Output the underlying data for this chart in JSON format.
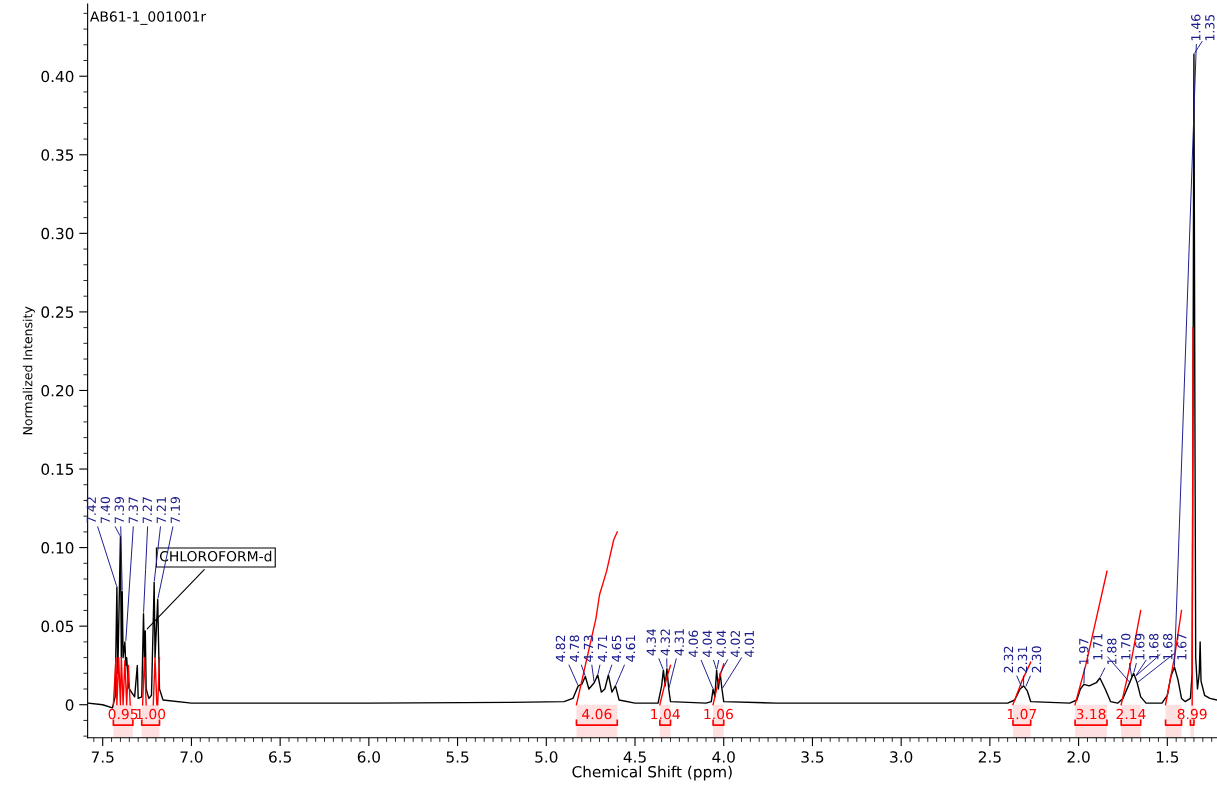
{
  "chart_data": {
    "type": "line",
    "title": "AB61-1_001001r",
    "xlabel": "Chemical Shift (ppm)",
    "ylabel": "Normalized Intensity",
    "xlim": [
      7.585,
      1.22
    ],
    "ylim": [
      -0.021,
      0.446
    ],
    "xticks": [
      7.5,
      {
        "value": 7,
        "label": "7.0"
      },
      6.5,
      {
        "value": 6,
        "label": "6.0"
      },
      5.5,
      {
        "value": 5,
        "label": "5.0"
      },
      4.5,
      {
        "value": 4,
        "label": "4.0"
      },
      3.5,
      {
        "value": 3,
        "label": "3.0"
      },
      2.5,
      {
        "value": 2,
        "label": "2.0"
      },
      1.5
    ],
    "yticks": [
      0,
      0.05,
      {
        "value": 0.1,
        "label": "0.10"
      },
      0.15,
      {
        "value": 0.2,
        "label": "0.20"
      },
      0.25,
      {
        "value": 0.3,
        "label": "0.30"
      },
      0.35,
      {
        "value": 0.4,
        "label": "0.40"
      }
    ],
    "grid": false,
    "marker": "none",
    "line_style": "solid",
    "series": [
      {
        "color": "#000000",
        "x": [
          7.58,
          7.5,
          7.445,
          7.43,
          7.42,
          7.415,
          7.4,
          7.395,
          7.39,
          7.385,
          7.375,
          7.37,
          7.365,
          7.355,
          7.35,
          7.32,
          7.305,
          7.3,
          7.28,
          7.27,
          7.265,
          7.26,
          7.255,
          7.24,
          7.225,
          7.21,
          7.205,
          7.19,
          7.18,
          7.16,
          7.0,
          6.0,
          5.2,
          4.9,
          4.85,
          4.82,
          4.8,
          4.78,
          4.76,
          4.73,
          4.71,
          4.69,
          4.67,
          4.65,
          4.63,
          4.61,
          4.59,
          4.5,
          4.37,
          4.35,
          4.34,
          4.33,
          4.32,
          4.31,
          4.3,
          4.1,
          4.07,
          4.06,
          4.05,
          4.04,
          4.03,
          4.02,
          4.01,
          4.0,
          3.7,
          2.4,
          2.36,
          2.33,
          2.31,
          2.29,
          2.27,
          2.05,
          2.01,
          1.99,
          1.97,
          1.94,
          1.9,
          1.88,
          1.85,
          1.82,
          1.78,
          1.75,
          1.72,
          1.69,
          1.67,
          1.65,
          1.62,
          1.53,
          1.5,
          1.48,
          1.46,
          1.44,
          1.42,
          1.4,
          1.37,
          1.36,
          1.355,
          1.35,
          1.345,
          1.34,
          1.33,
          1.32,
          1.315,
          1.31,
          1.29,
          1.26,
          1.22
        ],
        "values": [
          0.001,
          0.0,
          -0.002,
          0.005,
          0.075,
          0.02,
          0.107,
          0.03,
          0.072,
          0.03,
          0.04,
          0.025,
          0.03,
          0.012,
          0.01,
          0.005,
          0.025,
          0.004,
          0.005,
          0.058,
          0.03,
          0.047,
          0.01,
          0.004,
          0.006,
          0.078,
          0.03,
          0.067,
          0.01,
          0.003,
          0.001,
          0.001,
          0.0015,
          0.002,
          0.004,
          0.012,
          0.013,
          0.018,
          0.01,
          0.014,
          0.019,
          0.008,
          0.01,
          0.019,
          0.008,
          0.012,
          0.003,
          0.001,
          0.001,
          0.012,
          0.022,
          0.012,
          0.023,
          0.01,
          0.002,
          0.001,
          0.002,
          0.01,
          0.005,
          0.022,
          0.01,
          0.02,
          0.01,
          0.002,
          0.001,
          0.001,
          0.003,
          0.01,
          0.012,
          0.009,
          0.002,
          0.001,
          0.003,
          0.01,
          0.013,
          0.012,
          0.014,
          0.017,
          0.01,
          0.002,
          0.001,
          0.004,
          0.012,
          0.02,
          0.014,
          0.005,
          0.001,
          0.001,
          0.006,
          0.018,
          0.024,
          0.016,
          0.004,
          0.002,
          0.004,
          0.02,
          0.2,
          0.414,
          0.2,
          0.03,
          0.01,
          0.02,
          0.04,
          0.015,
          0.006,
          0.004,
          0.003
        ]
      },
      {
        "color": "#ff0000",
        "x": [
          7.44,
          7.425,
          7.42,
          7.41,
          7.4,
          7.395,
          7.385,
          7.375,
          7.365,
          7.355,
          7.345,
          7.3,
          7.275,
          7.265,
          7.255,
          7.25,
          7.215,
          7.205,
          7.195,
          7.19,
          7.18
        ],
        "values": [
          0,
          0.03,
          0,
          0.03,
          0,
          0.03,
          0,
          0.028,
          0,
          0.025,
          0,
          null,
          0,
          0.03,
          0,
          null,
          0,
          0.03,
          0,
          0.0,
          0.03
        ]
      },
      {
        "color": "#ff0000",
        "x": [
          4.83,
          4.78,
          4.72,
          4.7,
          4.66,
          4.62,
          4.6
        ],
        "values": [
          0,
          0.025,
          0.055,
          0.07,
          0.085,
          0.105,
          0.11
        ]
      },
      {
        "color": "#ff0000",
        "x": [
          4.36,
          4.33,
          4.3
        ],
        "values": [
          0,
          0.014,
          0.025
        ]
      },
      {
        "color": "#ff0000",
        "x": [
          4.06,
          4.03,
          4.0
        ],
        "values": [
          0,
          0.015,
          0.026
        ]
      },
      {
        "color": "#ff0000",
        "x": [
          2.37,
          2.32,
          2.27
        ],
        "values": [
          0,
          0.015,
          0.027
        ]
      },
      {
        "color": "#ff0000",
        "x": [
          2.02,
          1.96,
          1.9,
          1.84
        ],
        "values": [
          0,
          0.025,
          0.055,
          0.085
        ]
      },
      {
        "color": "#ff0000",
        "x": [
          1.76,
          1.7,
          1.65
        ],
        "values": [
          0,
          0.03,
          0.06
        ]
      },
      {
        "color": "#ff0000",
        "x": [
          1.51,
          1.46,
          1.42
        ],
        "values": [
          0,
          0.03,
          0.06
        ]
      },
      {
        "color": "#ff0000",
        "x": [
          1.36,
          1.355
        ],
        "values": [
          0,
          0.24
        ]
      }
    ],
    "annotations": [
      {
        "text": "CHLOROFORM-d",
        "x": 7.26,
        "y": 0.047
      },
      {
        "text": "7.42",
        "x": 7.42,
        "y": 0.075
      },
      {
        "text": "7.40",
        "x": 7.4,
        "y": 0.107
      },
      {
        "text": "7.39",
        "x": 7.39,
        "y": 0.072
      },
      {
        "text": "7.27",
        "x": 7.27,
        "y": 0.058
      },
      {
        "text": "7.37",
        "x": 7.37,
        "y": 0.04
      },
      {
        "text": "7.21",
        "x": 7.21,
        "y": 0.078
      },
      {
        "text": "7.19",
        "x": 7.19,
        "y": 0.067
      },
      {
        "text": "4.82",
        "x": 4.82,
        "y": 0.012
      },
      {
        "text": "4.78",
        "x": 4.78,
        "y": 0.018
      },
      {
        "text": "4.73",
        "x": 4.73,
        "y": 0.014
      },
      {
        "text": "4.71",
        "x": 4.71,
        "y": 0.019
      },
      {
        "text": "4.65",
        "x": 4.65,
        "y": 0.019
      },
      {
        "text": "4.61",
        "x": 4.61,
        "y": 0.012
      },
      {
        "text": "4.34",
        "x": 4.34,
        "y": 0.022
      },
      {
        "text": "4.32",
        "x": 4.32,
        "y": 0.023
      },
      {
        "text": "4.31",
        "x": 4.31,
        "y": 0.01
      },
      {
        "text": "4.06",
        "x": 4.06,
        "y": 0.01
      },
      {
        "text": "4.04",
        "x": 4.04,
        "y": 0.022
      },
      {
        "text": "4.04",
        "x": 4.04,
        "y": 0.022
      },
      {
        "text": "4.02",
        "x": 4.02,
        "y": 0.02
      },
      {
        "text": "4.01",
        "x": 4.01,
        "y": 0.01
      },
      {
        "text": "2.32",
        "x": 2.32,
        "y": 0.011
      },
      {
        "text": "2.31",
        "x": 2.31,
        "y": 0.012
      },
      {
        "text": "2.30",
        "x": 2.3,
        "y": 0.011
      },
      {
        "text": "1.97",
        "x": 1.97,
        "y": 0.013
      },
      {
        "text": "1.88",
        "x": 1.88,
        "y": 0.017
      },
      {
        "text": "1.71",
        "x": 1.71,
        "y": 0.014
      },
      {
        "text": "1.70",
        "x": 1.7,
        "y": 0.017
      },
      {
        "text": "1.69",
        "x": 1.69,
        "y": 0.02
      },
      {
        "text": "1.68",
        "x": 1.68,
        "y": 0.018
      },
      {
        "text": "1.68",
        "x": 1.68,
        "y": 0.018
      },
      {
        "text": "1.67",
        "x": 1.67,
        "y": 0.014
      },
      {
        "text": "1.46",
        "x": 1.46,
        "y": 0.024
      },
      {
        "text": "1.35",
        "x": 1.35,
        "y": 0.414
      }
    ],
    "bands": [
      {
        "axis": "x",
        "from": 7.44,
        "to": 7.33,
        "label": "0.95",
        "color": "#ff0000"
      },
      {
        "axis": "x",
        "from": 7.28,
        "to": 7.18,
        "label": "1.00",
        "color": "#ff0000"
      },
      {
        "axis": "x",
        "from": 4.83,
        "to": 4.6,
        "label": "4.06",
        "color": "#ff0000"
      },
      {
        "axis": "x",
        "from": 4.36,
        "to": 4.3,
        "label": "1.04",
        "color": "#ff0000"
      },
      {
        "axis": "x",
        "from": 4.06,
        "to": 4.0,
        "label": "1.06",
        "color": "#ff0000"
      },
      {
        "axis": "x",
        "from": 2.37,
        "to": 2.27,
        "label": "1.07",
        "color": "#ff0000"
      },
      {
        "axis": "x",
        "from": 2.02,
        "to": 1.84,
        "label": "3.18",
        "color": "#ff0000"
      },
      {
        "axis": "x",
        "from": 1.76,
        "to": 1.65,
        "label": "2.14",
        "color": "#ff0000"
      },
      {
        "axis": "x",
        "from": 1.51,
        "to": 1.42,
        "label": null,
        "color": "#ff0000"
      },
      {
        "axis": "x",
        "from": 1.37,
        "to": 1.35,
        "label": "8.99",
        "color": "#ff0000"
      }
    ]
  }
}
